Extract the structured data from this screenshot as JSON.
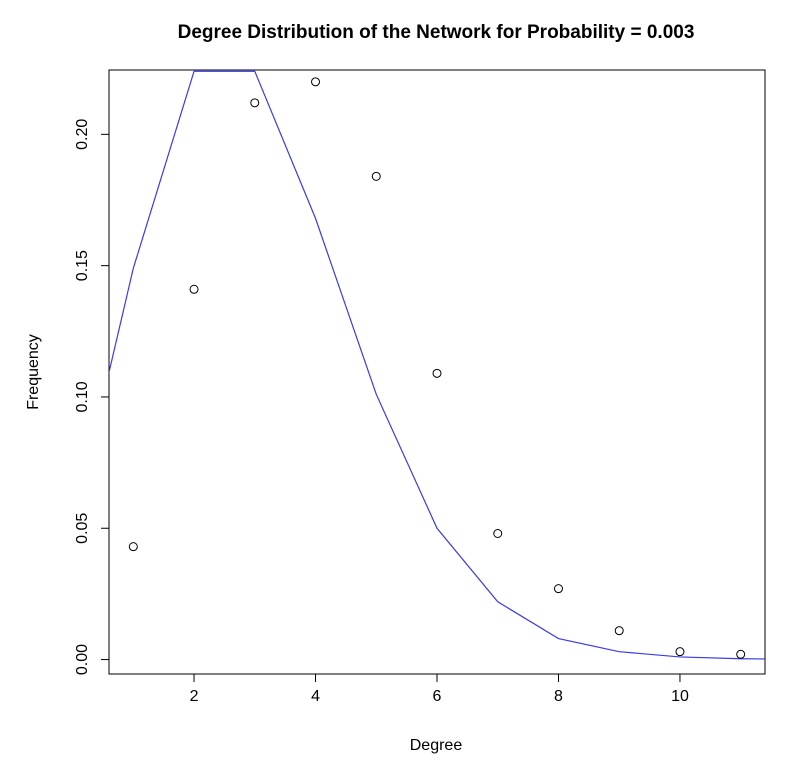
{
  "chart_data": {
    "type": "scatter",
    "title": "Degree Distribution of the Network for Probability =  0.003",
    "xlabel": "Degree",
    "ylabel": "Frequency",
    "xlim": [
      0.6,
      11.4
    ],
    "ylim": [
      -0.0055,
      0.2245
    ],
    "x_ticks": [
      2,
      4,
      6,
      8,
      10
    ],
    "y_ticks": [
      0.0,
      0.05,
      0.1,
      0.15,
      0.2
    ],
    "x_tick_labels": [
      "2",
      "4",
      "6",
      "8",
      "10"
    ],
    "y_tick_labels": [
      "0.00",
      "0.05",
      "0.10",
      "0.15",
      "0.20"
    ],
    "grid": false,
    "series": [
      {
        "kind": "points",
        "marker": "open-circle",
        "color": "#000000",
        "x": [
          1,
          2,
          3,
          4,
          5,
          6,
          7,
          8,
          9,
          10,
          11
        ],
        "y": [
          0.043,
          0.141,
          0.212,
          0.22,
          0.184,
          0.109,
          0.048,
          0.027,
          0.011,
          0.003,
          0.002
        ]
      },
      {
        "kind": "line",
        "color": "#3a3ae8",
        "x": [
          0,
          1,
          2,
          3,
          4,
          5,
          6,
          7,
          8,
          9,
          10,
          11,
          12
        ],
        "y": [
          0.05,
          0.149,
          0.224,
          0.224,
          0.168,
          0.101,
          0.05,
          0.022,
          0.008,
          0.003,
          0.001,
          0.0003,
          0.0001
        ]
      }
    ]
  }
}
